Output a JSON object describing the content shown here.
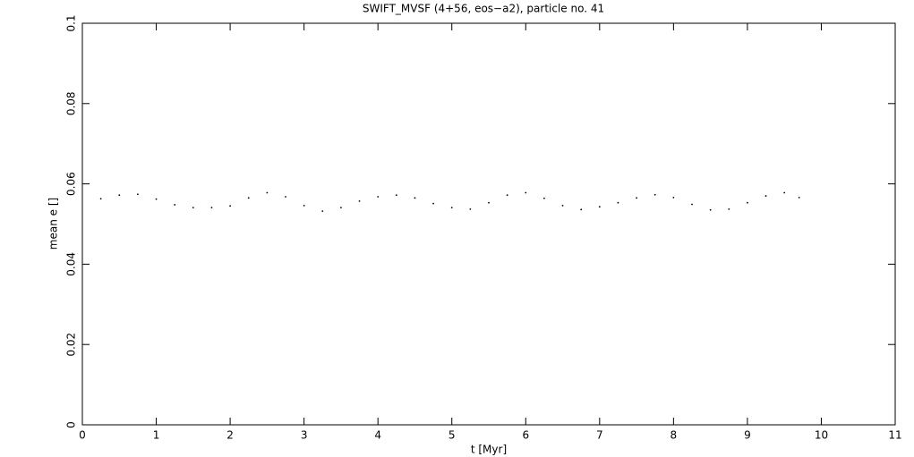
{
  "chart_data": {
    "type": "scatter",
    "title": "SWIFT_MVSF (4+56, eos−a2), particle no. 41",
    "x_label": "t [Myr]",
    "y_label": "mean e []",
    "xlim": [
      0,
      11
    ],
    "ylim": [
      0,
      0.1
    ],
    "xticks": [
      0,
      1,
      2,
      3,
      4,
      5,
      6,
      7,
      8,
      9,
      10,
      11
    ],
    "yticks": [
      0,
      0.02,
      0.04,
      0.06,
      0.08,
      0.1
    ],
    "color": "#000000",
    "x": [
      0.25,
      0.5,
      0.75,
      1.0,
      1.25,
      1.5,
      1.75,
      2.0,
      2.25,
      2.5,
      2.75,
      3.0,
      3.25,
      3.5,
      3.75,
      4.0,
      4.25,
      4.5,
      4.75,
      5.0,
      5.25,
      5.5,
      5.75,
      6.0,
      6.25,
      6.5,
      6.75,
      7.0,
      7.25,
      7.5,
      7.75,
      8.0,
      8.25,
      8.5,
      8.75,
      9.0,
      9.25,
      9.5,
      9.7
    ],
    "values": [
      0.0563,
      0.0572,
      0.0574,
      0.0562,
      0.0548,
      0.0541,
      0.0541,
      0.0545,
      0.0565,
      0.0578,
      0.0568,
      0.0546,
      0.0532,
      0.0541,
      0.0557,
      0.0568,
      0.0572,
      0.0565,
      0.0551,
      0.0541,
      0.0537,
      0.0553,
      0.0572,
      0.0578,
      0.0564,
      0.0546,
      0.0536,
      0.0543,
      0.0553,
      0.0565,
      0.0573,
      0.0566,
      0.0549,
      0.0535,
      0.0537,
      0.0553,
      0.057,
      0.0578,
      0.0566
    ]
  }
}
